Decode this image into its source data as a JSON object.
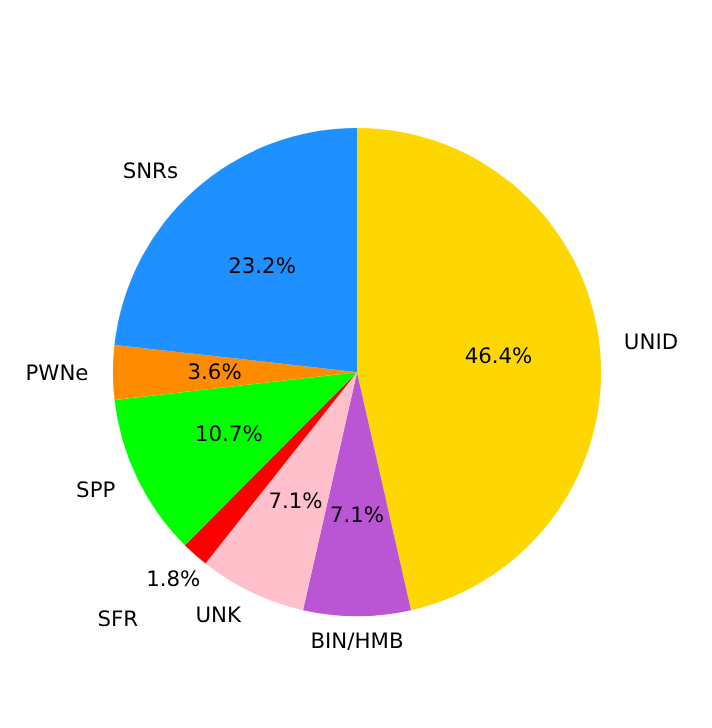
{
  "chart_data": {
    "type": "pie",
    "categories": [
      "UNID",
      "BIN/HMB",
      "UNK",
      "SFR",
      "SPP",
      "PWNe",
      "SNRs"
    ],
    "values": [
      46.4,
      7.1,
      7.1,
      1.8,
      10.7,
      3.6,
      23.2
    ],
    "colors": [
      "#ffd700",
      "#ba55d3",
      "#ffc0cb",
      "#ff0000",
      "#00ff00",
      "#ff8c00",
      "#1e90ff"
    ],
    "value_labels": [
      "46.4%",
      "7.1%",
      "7.1%",
      "1.8%",
      "10.7%",
      "3.6%",
      "23.2%"
    ]
  }
}
